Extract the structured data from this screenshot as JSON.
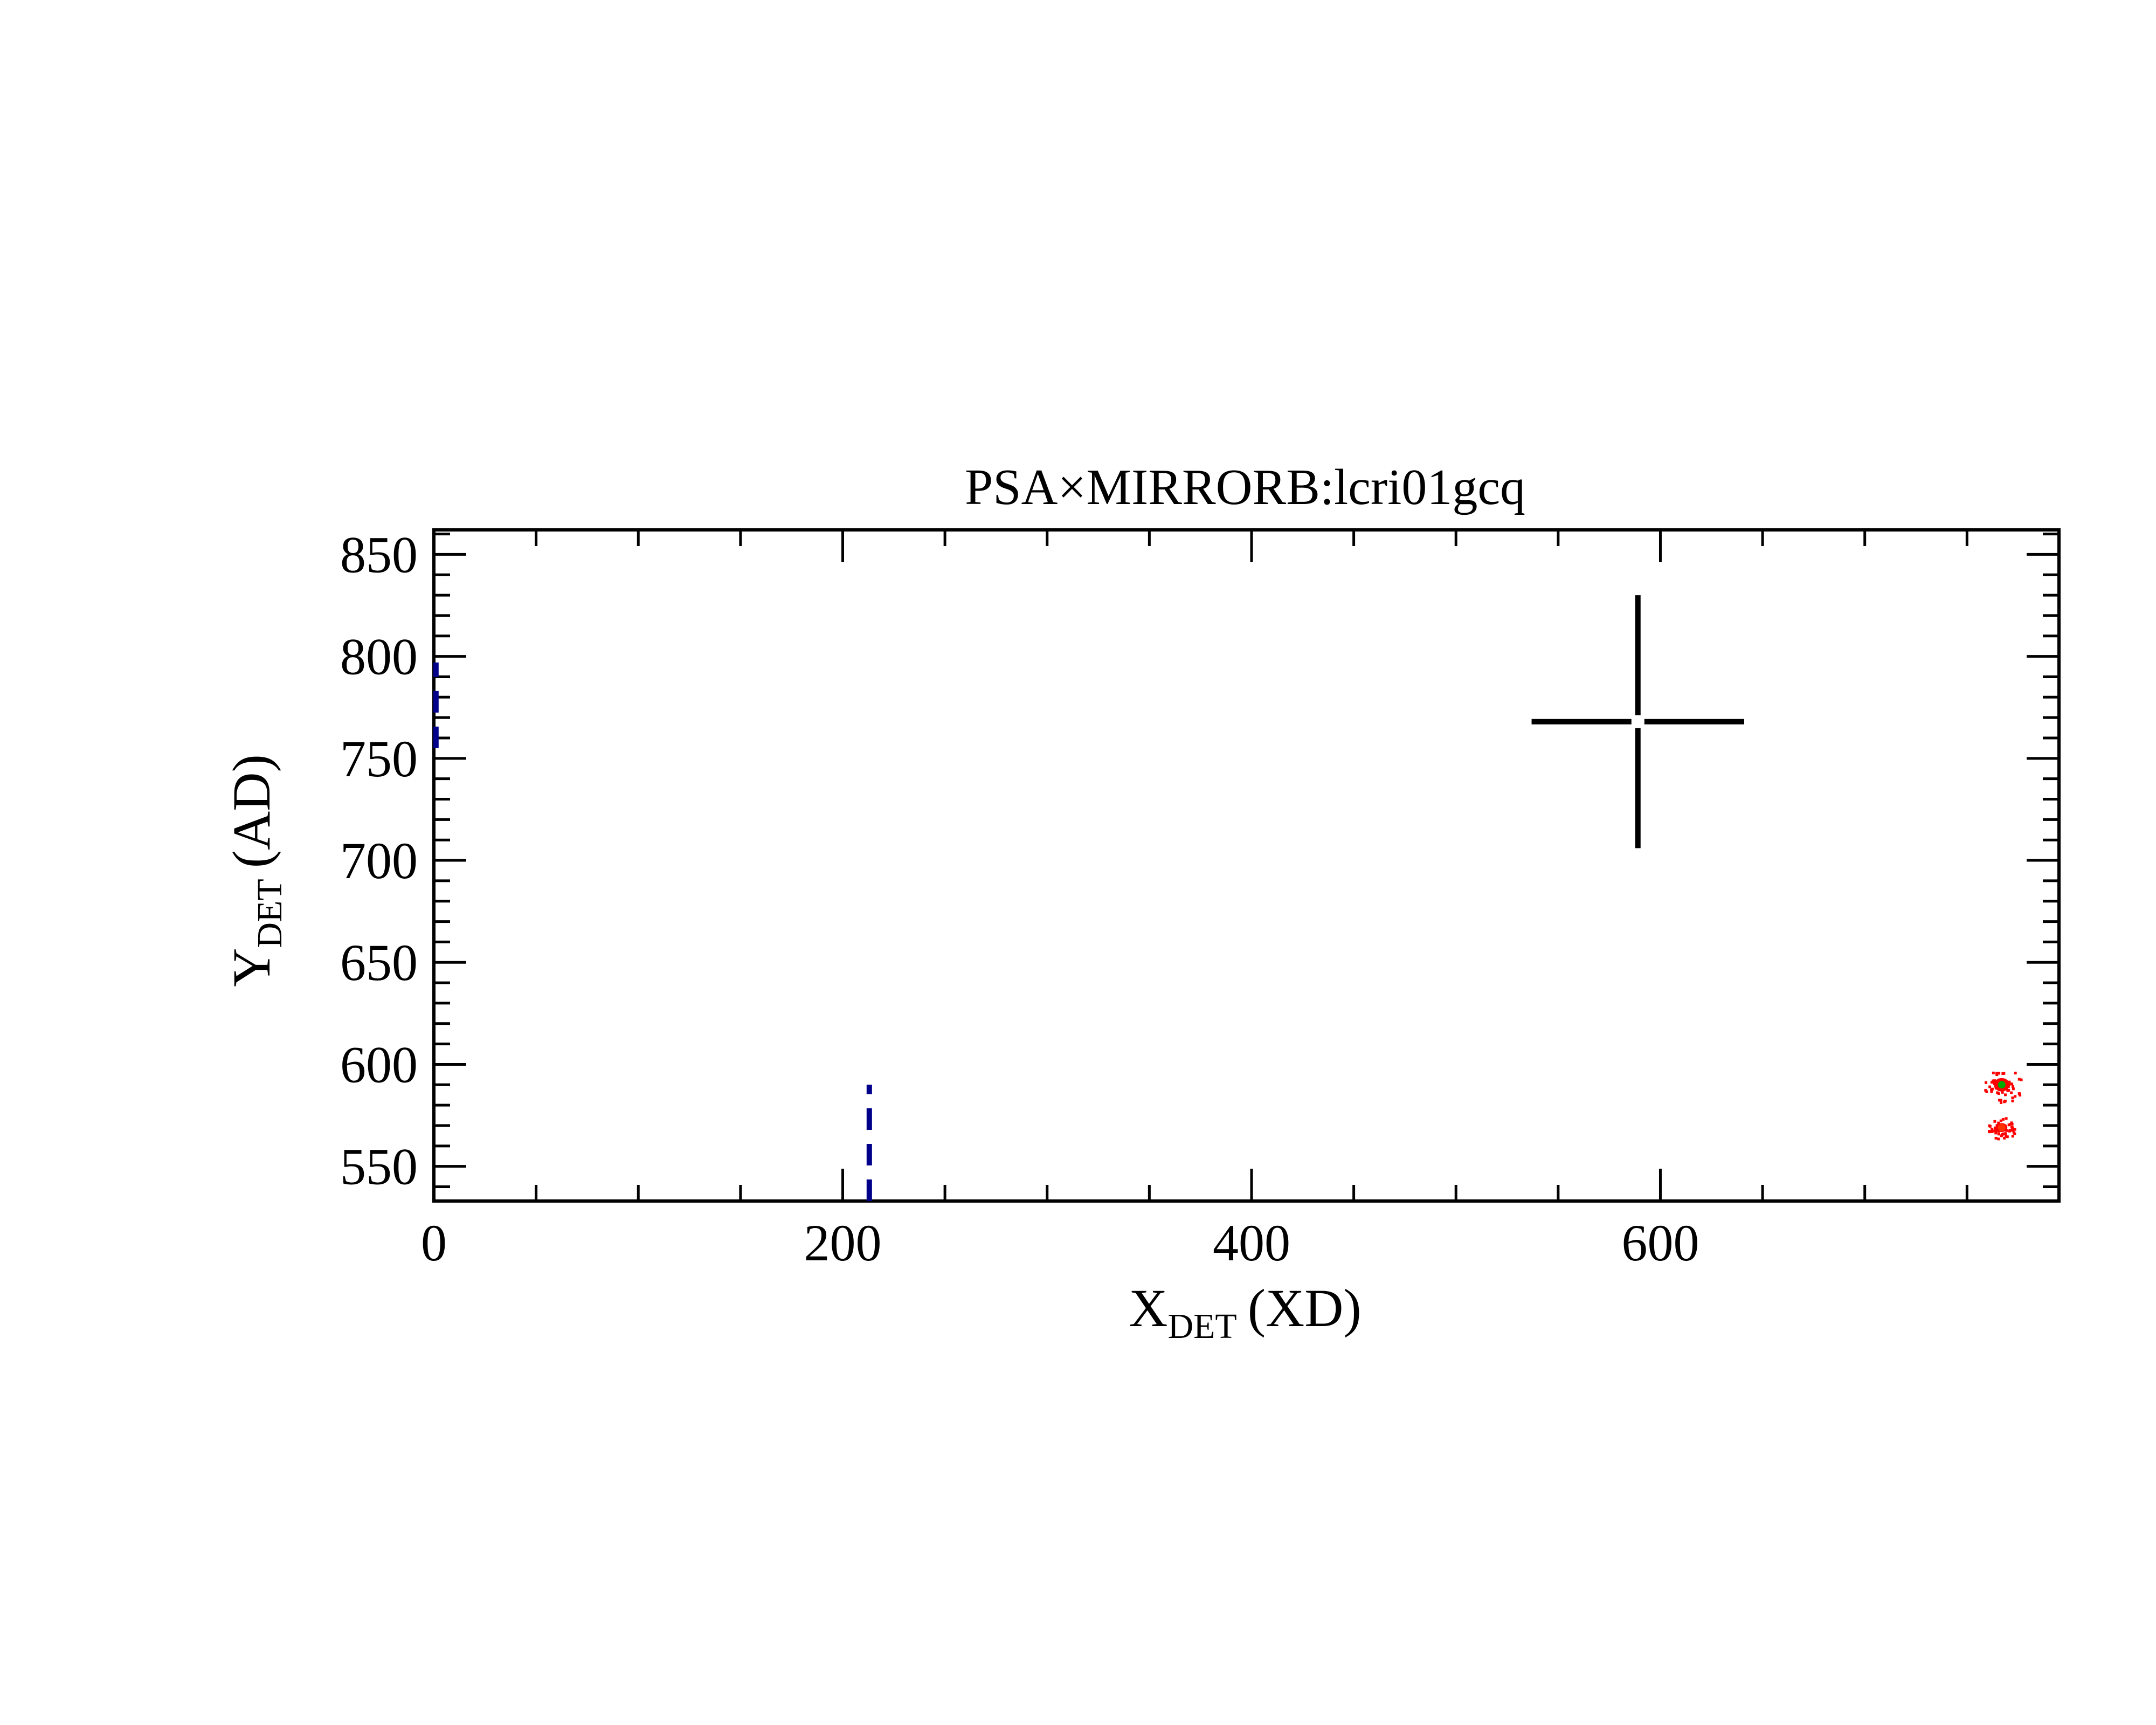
{
  "chart_data": {
    "type": "scatter",
    "title": "PSA×MIRRORB:lcri01gcq",
    "xlabel": {
      "main": "X",
      "sub": "DET",
      "unit": "(XD)"
    },
    "ylabel": {
      "main": "Y",
      "sub": "DET",
      "unit": "(AD)"
    },
    "xlim": [
      0,
      795
    ],
    "ylim": [
      533,
      862
    ],
    "x_ticks": [
      0,
      200,
      400,
      600
    ],
    "x_minor_step": 50,
    "y_ticks": [
      550,
      600,
      650,
      700,
      750,
      800,
      850
    ],
    "y_minor_step": 10,
    "grid": false,
    "marker_cross": {
      "x": 589,
      "y": 768,
      "half_width_x": 52,
      "half_height_y": 62,
      "color": "#000000"
    },
    "dashed_lines": [
      {
        "x": 213,
        "y_start": 533,
        "y_end": 590,
        "color": "#00008b"
      },
      {
        "x": 1,
        "y_start": 755,
        "y_end": 797,
        "color": "#00008b"
      }
    ],
    "spots": [
      {
        "x": 767,
        "y": 590,
        "spread_x": 7,
        "spread_y": 6,
        "core_color": "#ff0000",
        "center_color": "#00aa00"
      },
      {
        "x": 767,
        "y": 569,
        "spread_x": 5,
        "spread_y": 4,
        "core_color": "#ff0000",
        "center_color": "#ff3300"
      }
    ],
    "colors": {
      "axis": "#000000",
      "dashed": "#00008b",
      "spot": "#ff0000"
    }
  }
}
